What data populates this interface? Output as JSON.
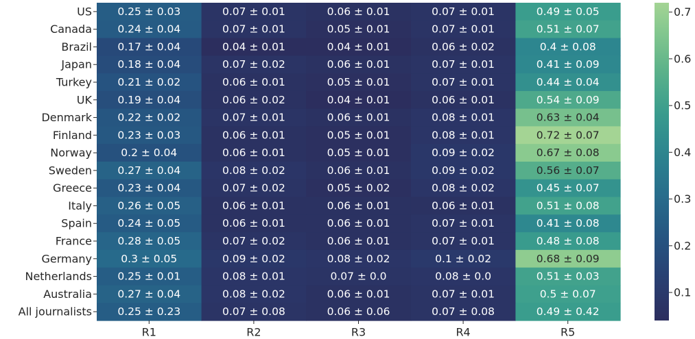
{
  "chart_data": {
    "type": "heatmap",
    "title": "",
    "xlabel": "",
    "ylabel": "",
    "colormap": "crest",
    "x_categories": [
      "R1",
      "R2",
      "R3",
      "R4",
      "R5"
    ],
    "y_categories": [
      "US",
      "Canada",
      "Brazil",
      "Japan",
      "Turkey",
      "UK",
      "Denmark",
      "Finland",
      "Norway",
      "Sweden",
      "Greece",
      "Italy",
      "Spain",
      "France",
      "Germany",
      "Netherlands",
      "Australia",
      "All journalists"
    ],
    "values": [
      [
        0.25,
        0.07,
        0.06,
        0.07,
        0.49
      ],
      [
        0.24,
        0.07,
        0.05,
        0.07,
        0.51
      ],
      [
        0.17,
        0.04,
        0.04,
        0.06,
        0.4
      ],
      [
        0.18,
        0.07,
        0.06,
        0.07,
        0.41
      ],
      [
        0.21,
        0.06,
        0.05,
        0.07,
        0.44
      ],
      [
        0.19,
        0.06,
        0.04,
        0.06,
        0.54
      ],
      [
        0.22,
        0.07,
        0.06,
        0.08,
        0.63
      ],
      [
        0.23,
        0.06,
        0.05,
        0.08,
        0.72
      ],
      [
        0.2,
        0.06,
        0.05,
        0.09,
        0.67
      ],
      [
        0.27,
        0.08,
        0.06,
        0.09,
        0.56
      ],
      [
        0.23,
        0.07,
        0.05,
        0.08,
        0.45
      ],
      [
        0.26,
        0.06,
        0.06,
        0.06,
        0.51
      ],
      [
        0.24,
        0.06,
        0.06,
        0.07,
        0.41
      ],
      [
        0.28,
        0.07,
        0.06,
        0.07,
        0.48
      ],
      [
        0.3,
        0.09,
        0.08,
        0.1,
        0.68
      ],
      [
        0.25,
        0.08,
        0.07,
        0.08,
        0.51
      ],
      [
        0.27,
        0.08,
        0.06,
        0.07,
        0.5
      ],
      [
        0.25,
        0.07,
        0.06,
        0.07,
        0.49
      ]
    ],
    "annotations": [
      [
        "0.25 ± 0.03",
        "0.07 ± 0.01",
        "0.06 ± 0.01",
        "0.07 ± 0.01",
        "0.49 ± 0.05"
      ],
      [
        "0.24 ± 0.04",
        "0.07 ± 0.01",
        "0.05 ± 0.01",
        "0.07 ± 0.01",
        "0.51 ± 0.07"
      ],
      [
        "0.17 ± 0.04",
        "0.04 ± 0.01",
        "0.04 ± 0.01",
        "0.06 ± 0.02",
        "0.4 ± 0.08"
      ],
      [
        "0.18 ± 0.04",
        "0.07 ± 0.02",
        "0.06 ± 0.01",
        "0.07 ± 0.01",
        "0.41 ± 0.09"
      ],
      [
        "0.21 ± 0.02",
        "0.06 ± 0.01",
        "0.05 ± 0.01",
        "0.07 ± 0.01",
        "0.44 ± 0.04"
      ],
      [
        "0.19 ± 0.04",
        "0.06 ± 0.02",
        "0.04 ± 0.01",
        "0.06 ± 0.01",
        "0.54 ± 0.09"
      ],
      [
        "0.22 ± 0.02",
        "0.07 ± 0.01",
        "0.06 ± 0.01",
        "0.08 ± 0.01",
        "0.63 ± 0.04"
      ],
      [
        "0.23 ± 0.03",
        "0.06 ± 0.01",
        "0.05 ± 0.01",
        "0.08 ± 0.01",
        "0.72 ± 0.07"
      ],
      [
        "0.2 ± 0.04",
        "0.06 ± 0.01",
        "0.05 ± 0.01",
        "0.09 ± 0.02",
        "0.67 ± 0.08"
      ],
      [
        "0.27 ± 0.04",
        "0.08 ± 0.02",
        "0.06 ± 0.01",
        "0.09 ± 0.02",
        "0.56 ± 0.07"
      ],
      [
        "0.23 ± 0.04",
        "0.07 ± 0.02",
        "0.05 ± 0.02",
        "0.08 ± 0.02",
        "0.45 ± 0.07"
      ],
      [
        "0.26 ± 0.05",
        "0.06 ± 0.01",
        "0.06 ± 0.01",
        "0.06 ± 0.01",
        "0.51 ± 0.08"
      ],
      [
        "0.24 ± 0.05",
        "0.06 ± 0.01",
        "0.06 ± 0.01",
        "0.07 ± 0.01",
        "0.41 ± 0.08"
      ],
      [
        "0.28 ± 0.05",
        "0.07 ± 0.02",
        "0.06 ± 0.01",
        "0.07 ± 0.01",
        "0.48 ± 0.08"
      ],
      [
        "0.3 ± 0.05",
        "0.09 ± 0.02",
        "0.08 ± 0.02",
        "0.1 ± 0.02",
        "0.68 ± 0.09"
      ],
      [
        "0.25 ± 0.01",
        "0.08 ± 0.01",
        "0.07 ± 0.0",
        "0.08 ± 0.0",
        "0.51 ± 0.03"
      ],
      [
        "0.27 ± 0.04",
        "0.08 ± 0.02",
        "0.06 ± 0.01",
        "0.07 ± 0.01",
        "0.5 ± 0.07"
      ],
      [
        "0.25 ± 0.23",
        "0.07 ± 0.08",
        "0.06 ± 0.06",
        "0.07 ± 0.08",
        "0.49 ± 0.42"
      ]
    ],
    "color_range": [
      0.04,
      0.72
    ],
    "colorbar": {
      "ticks": [
        0.1,
        0.2,
        0.3,
        0.4,
        0.5,
        0.6,
        0.7
      ],
      "tick_labels": [
        "0.1",
        "0.2",
        "0.3",
        "0.4",
        "0.5",
        "0.6",
        "0.7"
      ],
      "low_color": "#2c2e5e",
      "high_color": "#a4d494"
    },
    "grid": false,
    "legend": "colorbar-right"
  }
}
